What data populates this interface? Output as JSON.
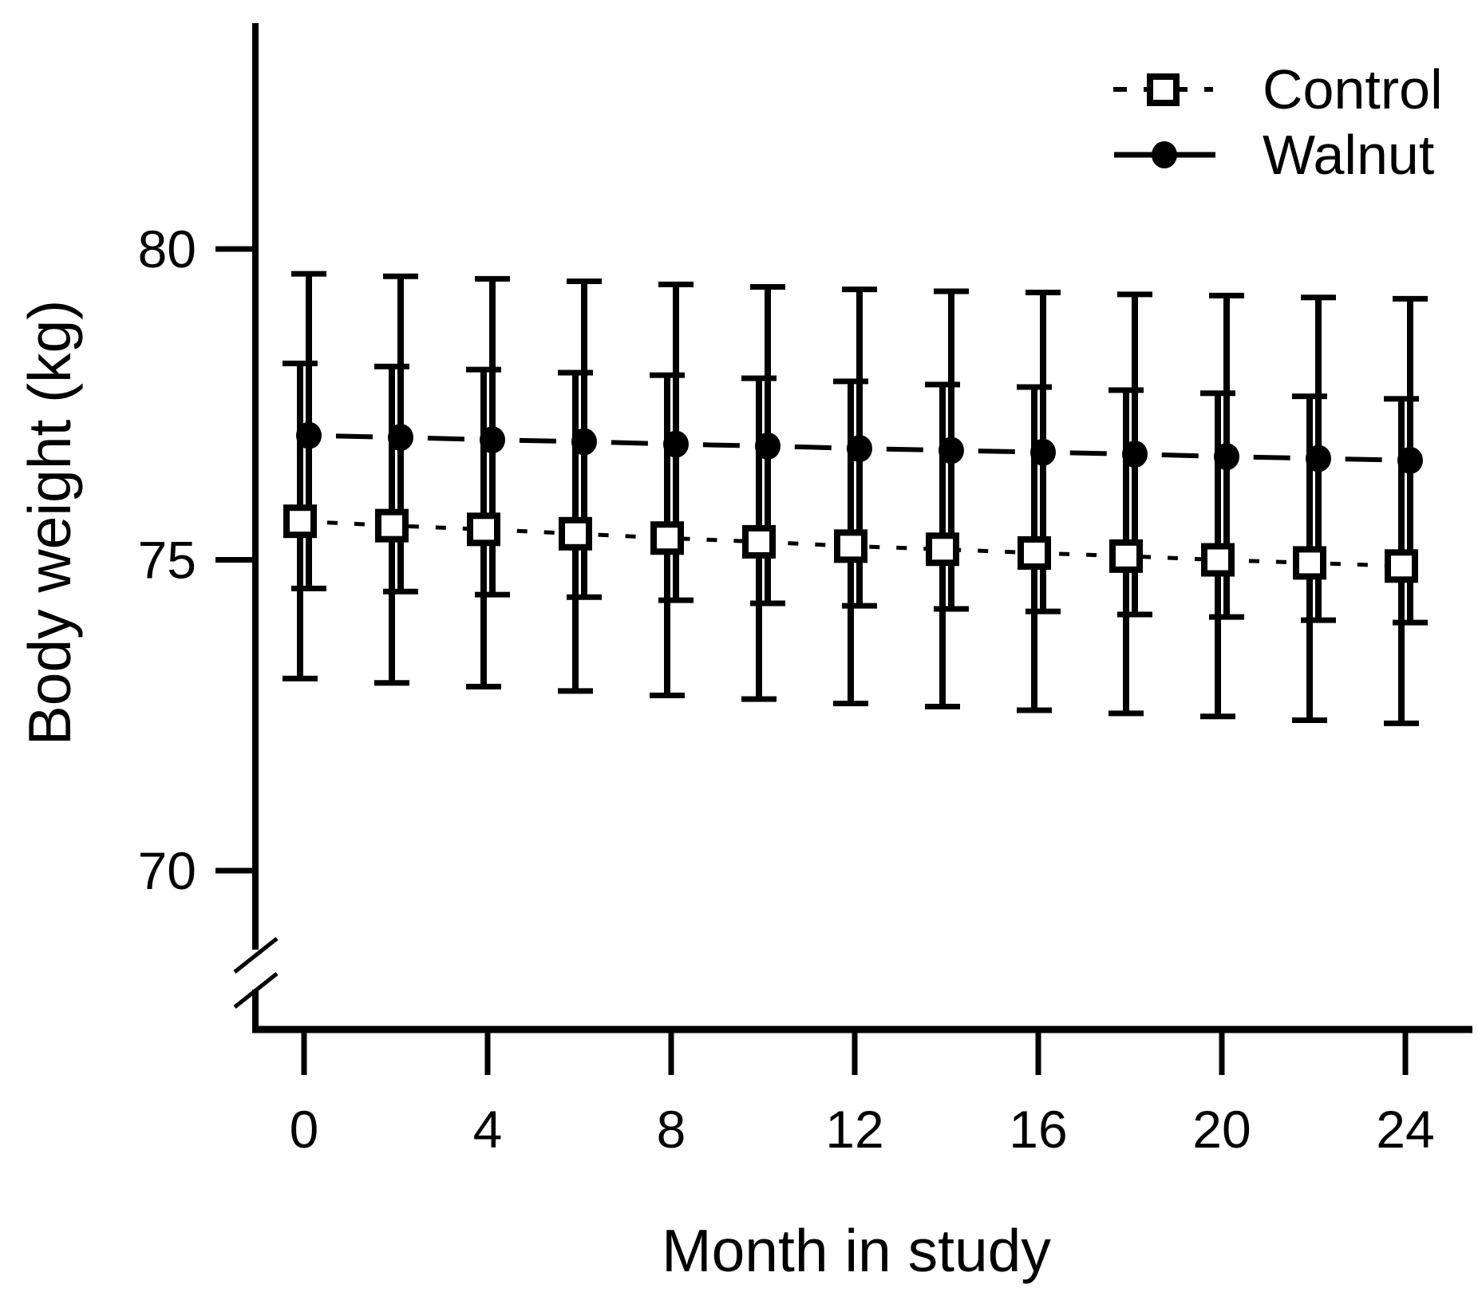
{
  "figure": {
    "background_color": "#ffffff",
    "ink_color": "#000000"
  },
  "chart_data": {
    "type": "line",
    "title": "",
    "xlabel": "Month in study",
    "ylabel": "Body weight (kg)",
    "x_tick_labels": [
      "0",
      "4",
      "8",
      "12",
      "16",
      "20",
      "24"
    ],
    "x_ticks": [
      0,
      4,
      8,
      12,
      16,
      20,
      24
    ],
    "y_tick_labels": [
      "80",
      "75",
      "70"
    ],
    "y_ticks": [
      80,
      75,
      70
    ],
    "xlim": [
      0,
      24
    ],
    "ylim_shown": [
      70,
      80
    ],
    "y_axis_break": true,
    "grid": false,
    "error_bars": true,
    "x": [
      0,
      2,
      4,
      6,
      8,
      10,
      12,
      14,
      16,
      18,
      20,
      22,
      24
    ],
    "series": [
      {
        "name": "Control",
        "marker": "open-square",
        "line_style": "short-dash",
        "values": [
          75.62,
          75.55,
          75.49,
          75.42,
          75.35,
          75.29,
          75.22,
          75.17,
          75.11,
          75.06,
          75.0,
          74.95,
          74.9
        ],
        "upper": [
          78.16,
          78.11,
          78.06,
          78.01,
          77.97,
          77.92,
          77.87,
          77.82,
          77.78,
          77.73,
          77.68,
          77.63,
          77.59
        ],
        "lower": [
          73.09,
          73.02,
          72.96,
          72.89,
          72.82,
          72.76,
          72.69,
          72.64,
          72.58,
          72.53,
          72.48,
          72.42,
          72.37
        ]
      },
      {
        "name": "Walnut",
        "marker": "filled-circle",
        "line_style": "long-dash",
        "values": [
          77.0,
          76.97,
          76.93,
          76.9,
          76.86,
          76.83,
          76.79,
          76.76,
          76.73,
          76.7,
          76.66,
          76.63,
          76.6
        ],
        "upper": [
          79.6,
          79.56,
          79.52,
          79.48,
          79.43,
          79.39,
          79.35,
          79.32,
          79.3,
          79.27,
          79.25,
          79.22,
          79.2
        ],
        "lower": [
          74.54,
          74.49,
          74.44,
          74.4,
          74.35,
          74.3,
          74.26,
          74.21,
          74.17,
          74.12,
          74.08,
          74.03,
          73.99
        ]
      }
    ],
    "legend": {
      "position": "top-right",
      "entries": [
        "Control",
        "Walnut"
      ]
    }
  }
}
